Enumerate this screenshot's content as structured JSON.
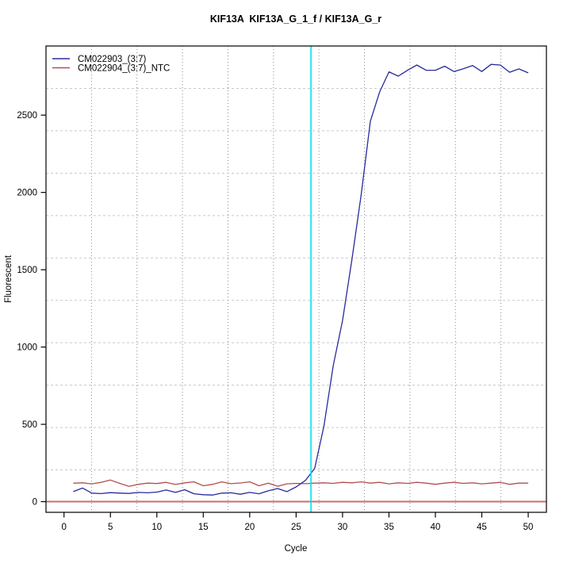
{
  "title": "KIF13A  KIF13A_G_1_f / KIF13A_G_r",
  "chart_data": {
    "type": "line",
    "title": "KIF13A  KIF13A_G_1_f / KIF13A_G_r",
    "xlabel": "Cycle",
    "ylabel": "Fluorescent",
    "x": [
      1,
      2,
      3,
      4,
      5,
      6,
      7,
      8,
      9,
      10,
      11,
      12,
      13,
      14,
      15,
      16,
      17,
      18,
      19,
      20,
      21,
      22,
      23,
      24,
      25,
      26,
      27,
      28,
      29,
      30,
      31,
      32,
      33,
      34,
      35,
      36,
      37,
      38,
      39,
      40,
      41,
      42,
      43,
      44,
      45,
      46,
      47,
      48,
      49,
      50
    ],
    "series": [
      {
        "name": "CM022903_(3:7)",
        "color": "#2a2a9c",
        "values": [
          65,
          88,
          55,
          52,
          58,
          55,
          53,
          60,
          57,
          62,
          75,
          60,
          77,
          51,
          45,
          43,
          55,
          57,
          48,
          60,
          51,
          70,
          85,
          65,
          95,
          137,
          215,
          490,
          880,
          1170,
          1560,
          1980,
          2460,
          2650,
          2780,
          2752,
          2790,
          2824,
          2790,
          2790,
          2816,
          2782,
          2800,
          2821,
          2782,
          2828,
          2824,
          2777,
          2799,
          2773
        ]
      },
      {
        "name": "CM022904_(3:7)_NTC",
        "color": "#b05050",
        "values": [
          119,
          122,
          115,
          125,
          140,
          118,
          99,
          112,
          120,
          117,
          125,
          111,
          122,
          128,
          103,
          112,
          128,
          116,
          121,
          128,
          103,
          120,
          100,
          115,
          118,
          116,
          120,
          122,
          118,
          125,
          122,
          128,
          120,
          125,
          115,
          122,
          118,
          125,
          120,
          112,
          120,
          125,
          118,
          122,
          115,
          120,
          125,
          112,
          120,
          120
        ]
      }
    ],
    "x_ticks": [
      0,
      5,
      10,
      15,
      20,
      25,
      30,
      35,
      40,
      45,
      50
    ],
    "y_ticks": [
      0,
      500,
      1000,
      1500,
      2000,
      2500
    ],
    "xlim": [
      -1.94,
      51.96
    ],
    "ylim": [
      -69,
      2947
    ],
    "threshold_cycle_line": {
      "x": 26.6,
      "color": "#00e0e8"
    },
    "baseline": {
      "y": 0,
      "color": "#cd6b6b"
    },
    "grid": {
      "nx": 11,
      "ny": 11,
      "v_color": "#8a8a8a",
      "h_color": "#c8c8c8"
    },
    "legend": {
      "position": "top-left"
    }
  }
}
